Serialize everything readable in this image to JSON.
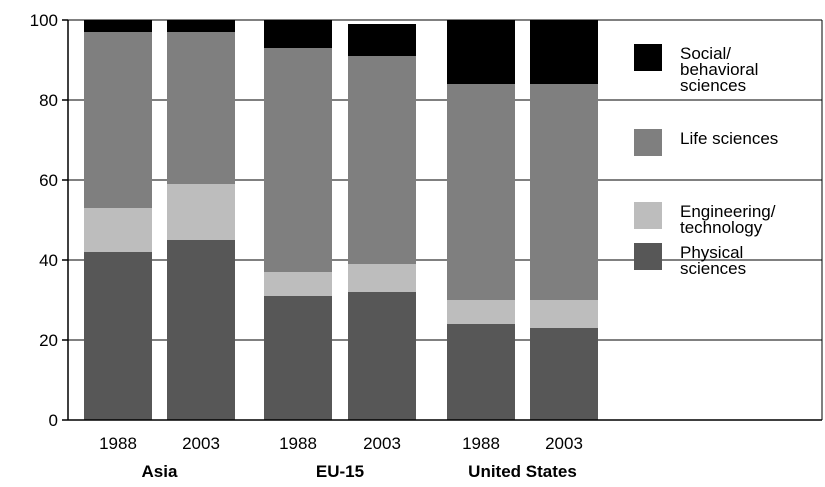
{
  "chart_data": {
    "type": "bar",
    "stacked": true,
    "groups": [
      "Asia",
      "EU-15",
      "United States"
    ],
    "categories": [
      "1988",
      "2003",
      "1988",
      "2003",
      "1988",
      "2003"
    ],
    "category_groups": [
      "Asia",
      "Asia",
      "EU-15",
      "EU-15",
      "United States",
      "United States"
    ],
    "series": [
      {
        "name": "Physical sciences",
        "color": "#575757",
        "values": [
          42,
          45,
          31,
          32,
          24,
          23
        ]
      },
      {
        "name": "Engineering/ technology",
        "color": "#bdbdbd",
        "values": [
          11,
          14,
          6,
          7,
          6,
          7
        ]
      },
      {
        "name": "Life sciences",
        "color": "#7f7f7f",
        "values": [
          44,
          38,
          56,
          52,
          54,
          54
        ]
      },
      {
        "name": "Social/ behavioral sciences",
        "color": "#000000",
        "values": [
          3,
          3,
          7,
          8,
          16,
          16
        ]
      }
    ],
    "legend_labels": [
      [
        "Social/",
        "behavioral",
        "sciences"
      ],
      [
        "Life sciences"
      ],
      [
        "Engineering/",
        "technology"
      ],
      [
        "Physical",
        "sciences"
      ]
    ],
    "legend_colors": [
      "#000000",
      "#7f7f7f",
      "#bdbdbd",
      "#575757"
    ],
    "yticks": [
      "0",
      "20",
      "40",
      "60",
      "80",
      "100"
    ],
    "ylim": [
      0,
      100
    ],
    "grid": true,
    "legend_position": "right",
    "xlabel": "",
    "ylabel": "",
    "title": ""
  }
}
